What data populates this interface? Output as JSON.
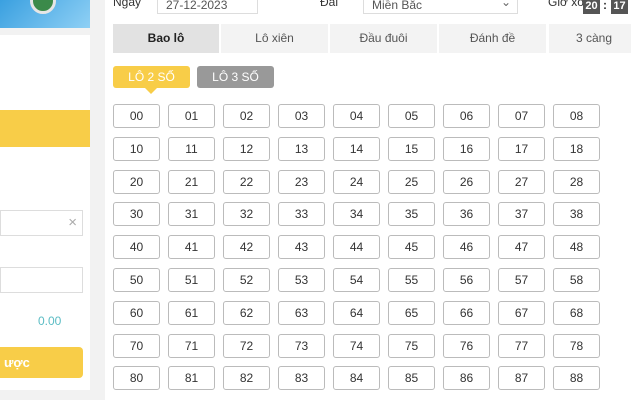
{
  "filters": {
    "date_label": "Ngày",
    "date_value": "27-12-2023",
    "station_label": "Đài",
    "station_value": "Miền Bắc",
    "draw_time_label": "Giờ xổ",
    "hour": "20",
    "sep": ":",
    "minute": "17"
  },
  "tabs": [
    {
      "label": "Bao lô",
      "active": true
    },
    {
      "label": "Lô xiên"
    },
    {
      "label": "Đầu đuôi"
    },
    {
      "label": "Đánh đề"
    },
    {
      "label": "3 càng"
    }
  ],
  "subtabs": [
    {
      "label": "LÔ 2 SỐ",
      "active": true,
      "color": "#f8cd48"
    },
    {
      "label": "LÔ 3 SỐ",
      "color": "#999999"
    }
  ],
  "numbers": [
    "00",
    "01",
    "02",
    "03",
    "04",
    "05",
    "06",
    "07",
    "08",
    "10",
    "11",
    "12",
    "13",
    "14",
    "15",
    "16",
    "17",
    "18",
    "20",
    "21",
    "22",
    "23",
    "24",
    "25",
    "26",
    "27",
    "28",
    "30",
    "31",
    "32",
    "33",
    "34",
    "35",
    "36",
    "37",
    "38",
    "40",
    "41",
    "42",
    "43",
    "44",
    "45",
    "46",
    "47",
    "48",
    "50",
    "51",
    "52",
    "53",
    "54",
    "55",
    "56",
    "57",
    "58",
    "60",
    "61",
    "62",
    "63",
    "64",
    "65",
    "66",
    "67",
    "68",
    "70",
    "71",
    "72",
    "73",
    "74",
    "75",
    "76",
    "77",
    "78",
    "80",
    "81",
    "82",
    "83",
    "84",
    "85",
    "86",
    "87",
    "88"
  ],
  "side": {
    "clear_icon": "×",
    "amount": "0.00",
    "submit_label": "ược"
  },
  "colors": {
    "accent": "#f8cd48",
    "amount": "#5bbcc4"
  }
}
